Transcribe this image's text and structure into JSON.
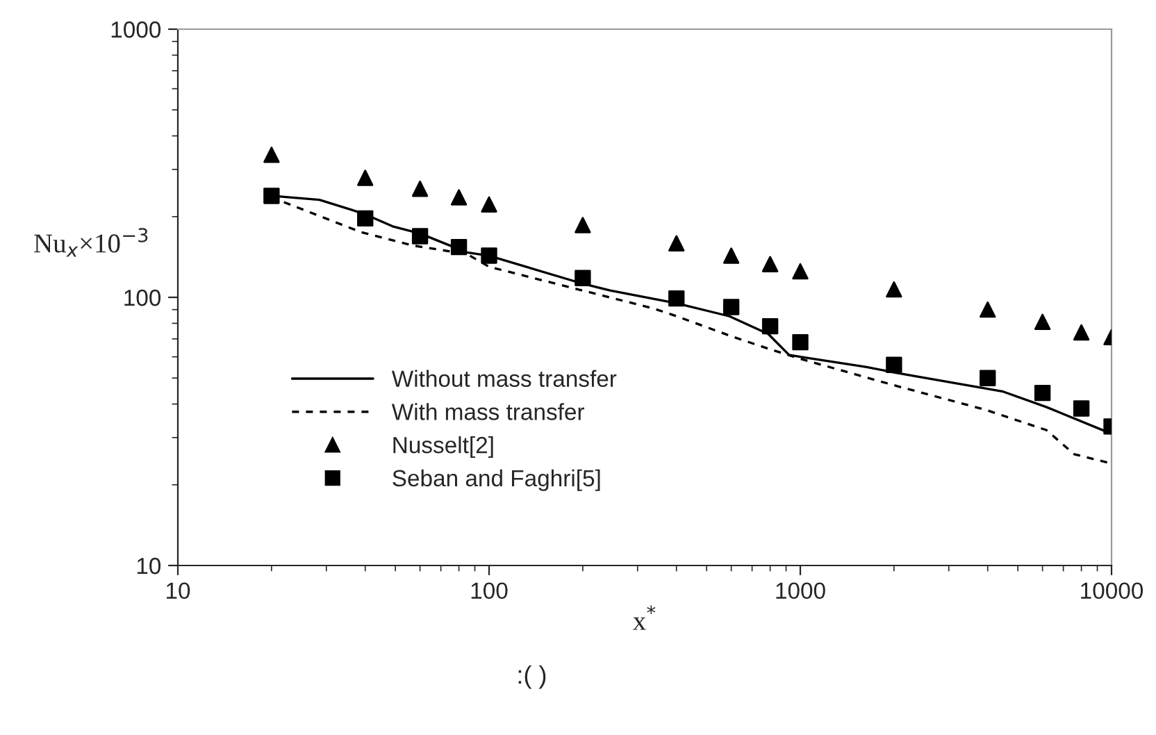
{
  "chart_data": {
    "type": "line",
    "xlabel": "x$^{*}$",
    "ylabel": "Nu$_{x}$×10$^{−3}$",
    "log": "xy",
    "xlim": [
      10,
      10000
    ],
    "ylim": [
      10,
      1000
    ],
    "xticks": [
      10,
      100,
      1000,
      10000
    ],
    "yticks": [
      10,
      100,
      1000
    ],
    "grid": false,
    "legend": "lower left",
    "annotations": [
      ":( )"
    ],
    "series": [
      {
        "name": "Without mass transfer",
        "line_style": "solid",
        "marker": "none",
        "color": "#000000",
        "x": [
          20,
          28.5,
          39.6,
          49,
          60,
          85,
          100,
          197,
          245,
          401,
          592,
          789,
          920,
          1000,
          1622,
          2000,
          4487,
          6170,
          10000
        ],
        "values": [
          239,
          231,
          205,
          184,
          173,
          147,
          143,
          113,
          106,
          95,
          85,
          73,
          61,
          60,
          55,
          52.5,
          44.5,
          39,
          31
        ]
      },
      {
        "name": "With mass transfer",
        "line_style": "dashed",
        "marker": "none",
        "color": "#000000",
        "x": [
          20,
          21.6,
          38.8,
          57,
          85,
          100,
          200,
          336,
          401,
          592,
          800,
          1000,
          2000,
          3960,
          6170,
          7590,
          10000
        ],
        "values": [
          239,
          228,
          175,
          156,
          145,
          130,
          106,
          91,
          85,
          72,
          64,
          59,
          47,
          38,
          32,
          26,
          24
        ]
      },
      {
        "name": "Nusselt[2]",
        "type": "scatter",
        "marker": "triangle",
        "color": "#000000",
        "x": [
          20,
          40,
          60,
          80,
          100,
          200,
          400,
          600,
          800,
          1000,
          2000,
          4000,
          6000,
          8000,
          10000
        ],
        "values": [
          340,
          279,
          254,
          236,
          222,
          186,
          159,
          143,
          133,
          125,
          107,
          90,
          81,
          74,
          71
        ]
      },
      {
        "name": "Seban and Faghri[5]",
        "type": "scatter",
        "marker": "square",
        "color": "#000000",
        "x": [
          20,
          40,
          60,
          80,
          100,
          200,
          400,
          600,
          800,
          1000,
          2000,
          4000,
          6000,
          8000,
          10000
        ],
        "values": [
          239,
          197,
          169,
          154,
          143,
          118,
          99,
          92,
          78,
          68,
          56,
          50,
          44,
          38.5,
          33
        ]
      }
    ]
  }
}
